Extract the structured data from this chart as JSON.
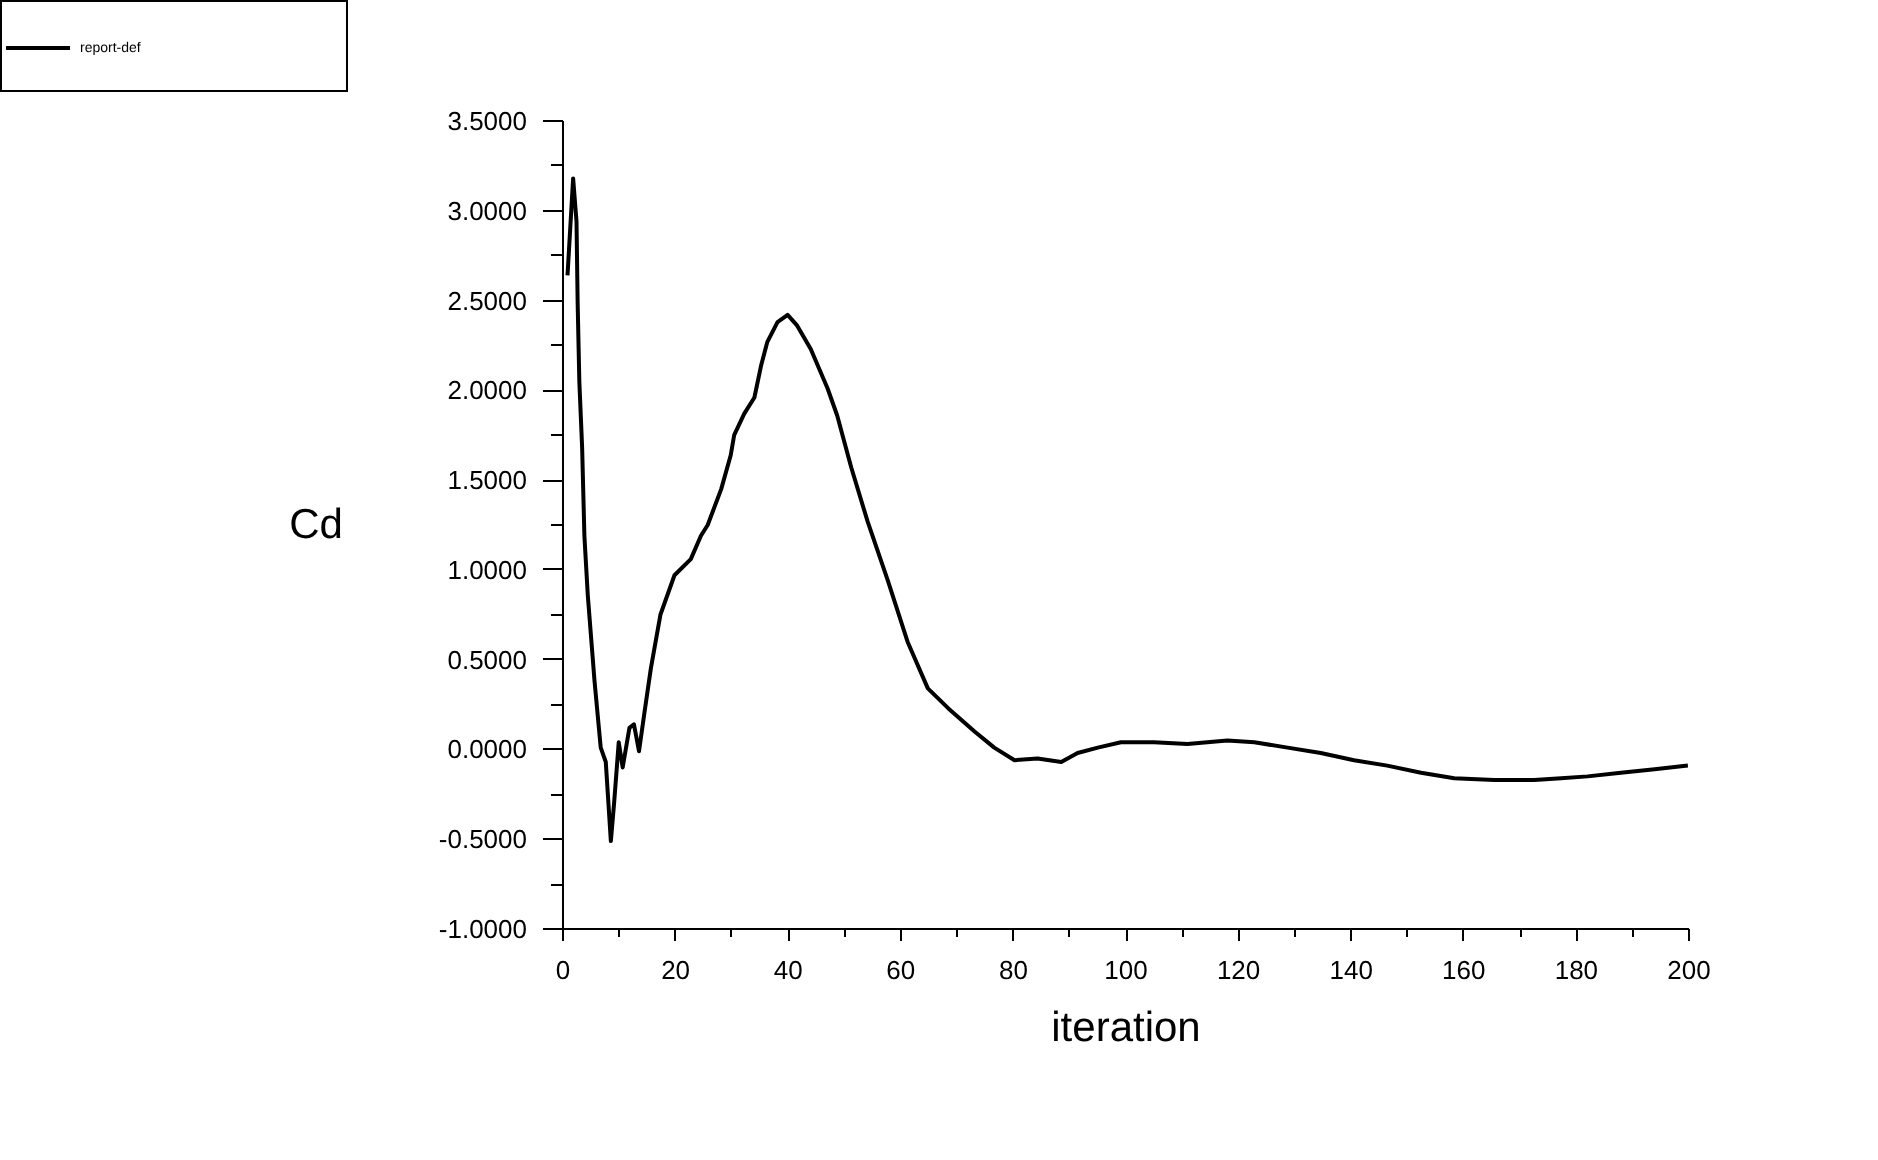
{
  "chart_data": {
    "type": "line",
    "xlabel": "iteration",
    "ylabel": "Cd",
    "x": [
      0.8,
      1.8,
      2.4,
      2.6,
      2.9,
      3.4,
      3.8,
      4.4,
      5.6,
      6.7,
      7.6,
      8.5,
      9.1,
      9.9,
      10.6,
      11.8,
      12.6,
      13.5,
      14.4,
      15.6,
      17.3,
      19.8,
      22.7,
      24.5,
      25.7,
      28.1,
      29.8,
      30.4,
      32.2,
      34.0,
      35.2,
      36.3,
      38.1,
      39.9,
      41.6,
      44.0,
      47.0,
      48.7,
      51.2,
      54.1,
      57.7,
      61.2,
      64.8,
      68.4,
      73.1,
      76.6,
      80.2,
      84.3,
      88.5,
      91.4,
      95.0,
      99.1,
      105.0,
      110.9,
      118.0,
      122.8,
      128.7,
      134.6,
      140.5,
      146.4,
      152.4,
      158.3,
      165.4,
      172.5,
      177.3,
      182.0,
      187.9,
      193.9,
      199.8
    ],
    "series": [
      {
        "name": "report-def",
        "color": "#000000",
        "values": [
          2.64,
          3.18,
          2.94,
          2.49,
          2.05,
          1.68,
          1.19,
          0.86,
          0.38,
          0.01,
          -0.07,
          -0.51,
          -0.29,
          0.04,
          -0.1,
          0.12,
          0.14,
          -0.01,
          0.19,
          0.45,
          0.75,
          0.97,
          1.06,
          1.19,
          1.25,
          1.45,
          1.64,
          1.75,
          1.87,
          1.96,
          2.14,
          2.27,
          2.38,
          2.42,
          2.36,
          2.23,
          2.01,
          1.86,
          1.57,
          1.27,
          0.94,
          0.6,
          0.34,
          0.23,
          0.1,
          0.01,
          -0.06,
          -0.05,
          -0.07,
          -0.02,
          0.01,
          0.04,
          0.04,
          0.03,
          0.05,
          0.04,
          0.01,
          -0.02,
          -0.06,
          -0.09,
          -0.13,
          -0.16,
          -0.17,
          -0.17,
          -0.16,
          -0.15,
          -0.13,
          -0.11,
          -0.09
        ]
      }
    ],
    "xlim": [
      0,
      200
    ],
    "ylim": [
      -1,
      3.5
    ],
    "xticks": [
      0,
      {
        "value": 10,
        "label": null
      },
      20,
      {
        "value": 30,
        "label": null
      },
      40,
      {
        "value": 50,
        "label": null
      },
      60,
      {
        "value": 70,
        "label": null
      },
      80,
      {
        "value": 90,
        "label": null
      },
      100,
      {
        "value": 110,
        "label": null
      },
      120,
      {
        "value": 130,
        "label": null
      },
      140,
      {
        "value": 150,
        "label": null
      },
      160,
      {
        "value": 170,
        "label": null
      },
      180,
      {
        "value": 190,
        "label": null
      },
      200
    ],
    "yticks": [
      {
        "value": -1,
        "label": "-1.0000"
      },
      {
        "value": -0.75,
        "label": null
      },
      {
        "value": -0.5,
        "label": "-0.5000"
      },
      {
        "value": -0.25,
        "label": null
      },
      {
        "value": 0,
        "label": "0.0000"
      },
      {
        "value": 0.25,
        "label": null
      },
      {
        "value": 0.5,
        "label": "0.5000"
      },
      {
        "value": 0.75,
        "label": null
      },
      {
        "value": 1,
        "label": "1.0000"
      },
      {
        "value": 1.25,
        "label": null
      },
      {
        "value": 1.5,
        "label": "1.5000"
      },
      {
        "value": 1.75,
        "label": null
      },
      {
        "value": 2,
        "label": "2.0000"
      },
      {
        "value": 2.25,
        "label": null
      },
      {
        "value": 2.5,
        "label": "2.5000"
      },
      {
        "value": 2.75,
        "label": null
      },
      {
        "value": 3,
        "label": "3.0000"
      },
      {
        "value": 3.25,
        "label": null
      },
      {
        "value": 3.5,
        "label": "3.5000"
      }
    ],
    "legend": "top left",
    "grid": false,
    "marker": "none",
    "line_style": "solid"
  }
}
